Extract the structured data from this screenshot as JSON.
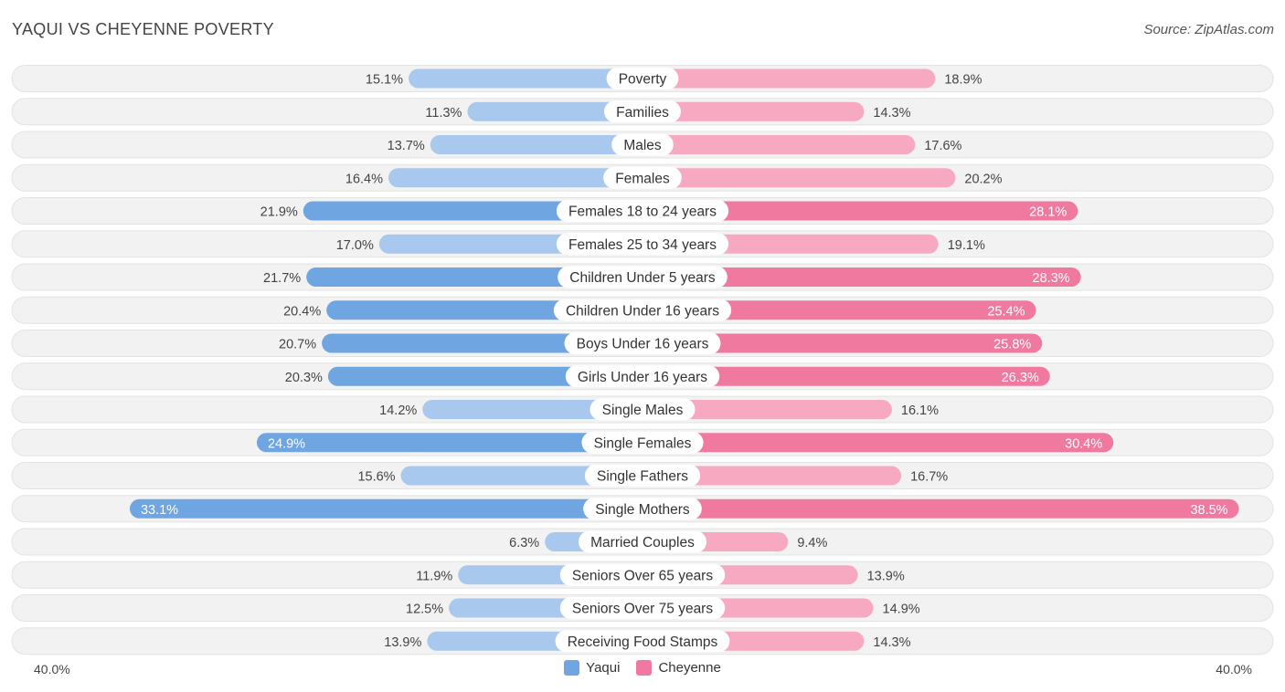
{
  "header": {
    "title": "YAQUI VS CHEYENNE POVERTY",
    "source": "Source: ZipAtlas.com"
  },
  "colors": {
    "yaqui": "#6fa5e0",
    "yaqui_light": "#a8c8ee",
    "cheyenne": "#f07a9f",
    "cheyenne_light": "#f6a9c1",
    "row_bg": "#f2f2f2"
  },
  "axis": {
    "left_label": "40.0%",
    "right_label": "40.0%"
  },
  "legend": {
    "yaqui": "Yaqui",
    "cheyenne": "Cheyenne"
  },
  "chart_data": {
    "type": "bar",
    "orientation": "horizontal-diverging",
    "title": "YAQUI VS CHEYENNE POVERTY",
    "xlim": [
      0,
      40
    ],
    "categories": [
      "Poverty",
      "Families",
      "Males",
      "Females",
      "Females 18 to 24 years",
      "Females 25 to 34 years",
      "Children Under 5 years",
      "Children Under 16 years",
      "Boys Under 16 years",
      "Girls Under 16 years",
      "Single Males",
      "Single Females",
      "Single Fathers",
      "Single Mothers",
      "Married Couples",
      "Seniors Over 65 years",
      "Seniors Over 75 years",
      "Receiving Food Stamps"
    ],
    "series": [
      {
        "name": "Yaqui",
        "side": "left",
        "values": [
          15.1,
          11.3,
          13.7,
          16.4,
          21.9,
          17.0,
          21.7,
          20.4,
          20.7,
          20.3,
          14.2,
          24.9,
          15.6,
          33.1,
          6.3,
          11.9,
          12.5,
          13.9
        ],
        "labels": [
          "15.1%",
          "11.3%",
          "13.7%",
          "16.4%",
          "21.9%",
          "17.0%",
          "21.7%",
          "20.4%",
          "20.7%",
          "20.3%",
          "14.2%",
          "24.9%",
          "15.6%",
          "33.1%",
          "6.3%",
          "11.9%",
          "12.5%",
          "13.9%"
        ]
      },
      {
        "name": "Cheyenne",
        "side": "right",
        "values": [
          18.9,
          14.3,
          17.6,
          20.2,
          28.1,
          19.1,
          28.3,
          25.4,
          25.8,
          26.3,
          16.1,
          30.4,
          16.7,
          38.5,
          9.4,
          13.9,
          14.9,
          14.3
        ],
        "labels": [
          "18.9%",
          "14.3%",
          "17.6%",
          "20.2%",
          "28.1%",
          "19.1%",
          "28.3%",
          "25.4%",
          "25.8%",
          "26.3%",
          "16.1%",
          "30.4%",
          "16.7%",
          "38.5%",
          "9.4%",
          "13.9%",
          "14.9%",
          "14.3%"
        ]
      }
    ]
  }
}
